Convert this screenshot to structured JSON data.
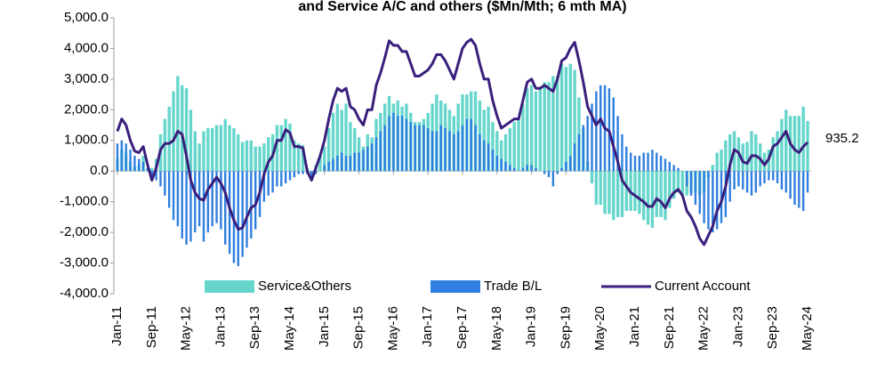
{
  "chart_data": {
    "type": "bar-line",
    "title": "and Service A/C and others ($Mn/Mth; 6 mth MA)",
    "categories": [
      "Jan-11",
      null,
      null,
      null,
      null,
      null,
      null,
      null,
      "Sep-11",
      null,
      null,
      null,
      null,
      null,
      null,
      null,
      "May-12",
      null,
      null,
      null,
      null,
      null,
      null,
      null,
      "Jan-13",
      null,
      null,
      null,
      null,
      null,
      null,
      null,
      "Sep-13",
      null,
      null,
      null,
      null,
      null,
      null,
      null,
      "May-14",
      null,
      null,
      null,
      null,
      null,
      null,
      null,
      "Jan-15",
      null,
      null,
      null,
      null,
      null,
      null,
      null,
      "Sep-15",
      null,
      null,
      null,
      null,
      null,
      null,
      null,
      "May-16",
      null,
      null,
      null,
      null,
      null,
      null,
      null,
      "Jan-17",
      null,
      null,
      null,
      null,
      null,
      null,
      null,
      "Sep-17",
      null,
      null,
      null,
      null,
      null,
      null,
      null,
      "May-18",
      null,
      null,
      null,
      null,
      null,
      null,
      null,
      "Jan-19",
      null,
      null,
      null,
      null,
      null,
      null,
      null,
      "Sep-19",
      null,
      null,
      null,
      null,
      null,
      null,
      null,
      "May-20",
      null,
      null,
      null,
      null,
      null,
      null,
      null,
      "Jan-21",
      null,
      null,
      null,
      null,
      null,
      null,
      null,
      "Sep-21",
      null,
      null,
      null,
      null,
      null,
      null,
      null,
      "May-22",
      null,
      null,
      null,
      null,
      null,
      null,
      null,
      "Jan-23",
      null,
      null,
      null,
      null,
      null,
      null,
      null,
      "Sep-23",
      null,
      null,
      null,
      null,
      null,
      null,
      null,
      "May-24"
    ],
    "series": [
      {
        "name": "Service&Others",
        "kind": "bar",
        "color": "#66d6cc",
        "values": [
          400,
          700,
          600,
          300,
          150,
          200,
          500,
          100,
          100,
          400,
          1200,
          1700,
          2100,
          2600,
          3100,
          2800,
          2700,
          2000,
          1300,
          900,
          1300,
          1400,
          1400,
          1500,
          1500,
          1700,
          1500,
          1400,
          1200,
          950,
          1000,
          1000,
          800,
          800,
          900,
          1100,
          1200,
          1500,
          1500,
          1700,
          1550,
          1000,
          900,
          850,
          100,
          -100,
          200,
          500,
          800,
          1400,
          1900,
          2200,
          2000,
          2200,
          1600,
          1400,
          1100,
          800,
          1200,
          1100,
          1700,
          1900,
          2200,
          2450,
          2200,
          2300,
          2100,
          2200,
          1900,
          1600,
          1600,
          1700,
          1900,
          2200,
          2500,
          2300,
          2200,
          2000,
          1800,
          2200,
          2500,
          2500,
          2600,
          2600,
          2300,
          2000,
          2100,
          1600,
          1300,
          1000,
          1200,
          1400,
          1600,
          1700,
          2200,
          2700,
          2800,
          2600,
          2700,
          2900,
          2900,
          3100,
          3100,
          3500,
          3400,
          3500,
          3300,
          2400,
          1400,
          300,
          -400,
          -1100,
          -1100,
          -1400,
          -1400,
          -1600,
          -1500,
          -1500,
          -1300,
          -1300,
          -1300,
          -1400,
          -1600,
          -1750,
          -1850,
          -1500,
          -1500,
          -1600,
          -1200,
          -900,
          -700,
          -800,
          -800,
          -700,
          -700,
          -800,
          -700,
          -200,
          200,
          600,
          700,
          1000,
          1200,
          1300,
          1100,
          900,
          950,
          1300,
          1200,
          900,
          600,
          700,
          1100,
          1300,
          1700,
          2000,
          1800,
          1800,
          1800,
          2100,
          1635
        ]
      },
      {
        "name": "Trade B/L",
        "kind": "bar",
        "color": "#2f7fe0",
        "values": [
          900,
          1000,
          900,
          700,
          500,
          400,
          300,
          100,
          -200,
          -300,
          -500,
          -800,
          -1200,
          -1600,
          -1800,
          -2200,
          -2400,
          -2300,
          -2000,
          -1800,
          -2300,
          -2000,
          -1800,
          -1700,
          -1900,
          -2400,
          -2700,
          -3000,
          -3100,
          -2800,
          -2500,
          -2200,
          -1900,
          -1500,
          -1000,
          -800,
          -700,
          -500,
          -500,
          -400,
          -300,
          -200,
          -100,
          -100,
          -100,
          -200,
          -100,
          0,
          200,
          300,
          400,
          500,
          600,
          500,
          500,
          600,
          600,
          700,
          800,
          900,
          1100,
          1300,
          1500,
          1800,
          1900,
          1800,
          1800,
          1700,
          1600,
          1500,
          1500,
          1500,
          1400,
          1300,
          1300,
          1500,
          1400,
          1300,
          1200,
          1300,
          1500,
          1700,
          1700,
          1500,
          1200,
          1000,
          900,
          700,
          500,
          400,
          300,
          200,
          100,
          0,
          100,
          200,
          200,
          100,
          0,
          -100,
          -200,
          -500,
          -100,
          100,
          300,
          500,
          900,
          1200,
          1500,
          1800,
          2200,
          2600,
          2800,
          2800,
          2700,
          2400,
          1800,
          1200,
          800,
          600,
          500,
          500,
          600,
          600,
          700,
          600,
          500,
          400,
          300,
          200,
          100,
          0,
          -500,
          -800,
          -1100,
          -1400,
          -1700,
          -1900,
          -2000,
          -1900,
          -1700,
          -1500,
          -1000,
          -600,
          -500,
          -600,
          -700,
          -800,
          -700,
          -500,
          -400,
          -300,
          -300,
          -400,
          -600,
          -700,
          -900,
          -1100,
          -1200,
          -1300,
          -700
        ]
      },
      {
        "name": "Current Account",
        "kind": "line",
        "color": "#3a1f7d",
        "values": [
          1300,
          1700,
          1500,
          1000,
          650,
          600,
          800,
          200,
          -300,
          100,
          700,
          900,
          900,
          1000,
          1300,
          1200,
          500,
          -300,
          -700,
          -900,
          -950,
          -600,
          -400,
          -200,
          -400,
          -700,
          -1200,
          -1600,
          -1900,
          -1850,
          -1500,
          -1200,
          -1100,
          -700,
          -100,
          300,
          500,
          1000,
          1000,
          1350,
          1250,
          800,
          800,
          750,
          0,
          -300,
          100,
          500,
          1000,
          1700,
          2300,
          2700,
          2600,
          2700,
          2100,
          2000,
          1700,
          1500,
          2000,
          2000,
          2800,
          3200,
          3700,
          4250,
          4100,
          4100,
          3900,
          3900,
          3500,
          3100,
          3100,
          3200,
          3300,
          3500,
          3800,
          3800,
          3600,
          3300,
          3000,
          3500,
          4000,
          4200,
          4300,
          4100,
          3500,
          3000,
          3000,
          2300,
          1800,
          1400,
          1500,
          1600,
          1700,
          1700,
          2300,
          2900,
          3000,
          2700,
          2700,
          2800,
          2700,
          2600,
          3000,
          3600,
          3700,
          4000,
          4200,
          3600,
          2900,
          2100,
          1800,
          1500,
          1700,
          1400,
          1300,
          800,
          300,
          -300,
          -500,
          -700,
          -800,
          -900,
          -1000,
          -1150,
          -1150,
          -900,
          -1000,
          -1200,
          -900,
          -700,
          -600,
          -800,
          -1300,
          -1500,
          -1800,
          -2200,
          -2400,
          -2100,
          -1800,
          -1300,
          -1000,
          -500,
          200,
          700,
          600,
          300,
          250,
          500,
          500,
          400,
          200,
          400,
          800,
          900,
          1100,
          1300,
          900,
          700,
          600,
          800,
          935.2
        ]
      }
    ],
    "ylim": [
      -4000,
      5000
    ],
    "yticks": [
      {
        "value": -4000,
        "label": "-4,000.0"
      },
      {
        "value": -3000,
        "label": "-3,000.0"
      },
      {
        "value": -2000,
        "label": "-2,000.0"
      },
      {
        "value": -1000,
        "label": "-1,000.0"
      },
      {
        "value": 0,
        "label": "0.0"
      },
      {
        "value": 1000,
        "label": "1,000.0"
      },
      {
        "value": 2000,
        "label": "2,000.0"
      },
      {
        "value": 3000,
        "label": "3,000.0"
      },
      {
        "value": 4000,
        "label": "4,000.0"
      },
      {
        "value": 5000,
        "label": "5,000.0"
      }
    ]
  }
}
